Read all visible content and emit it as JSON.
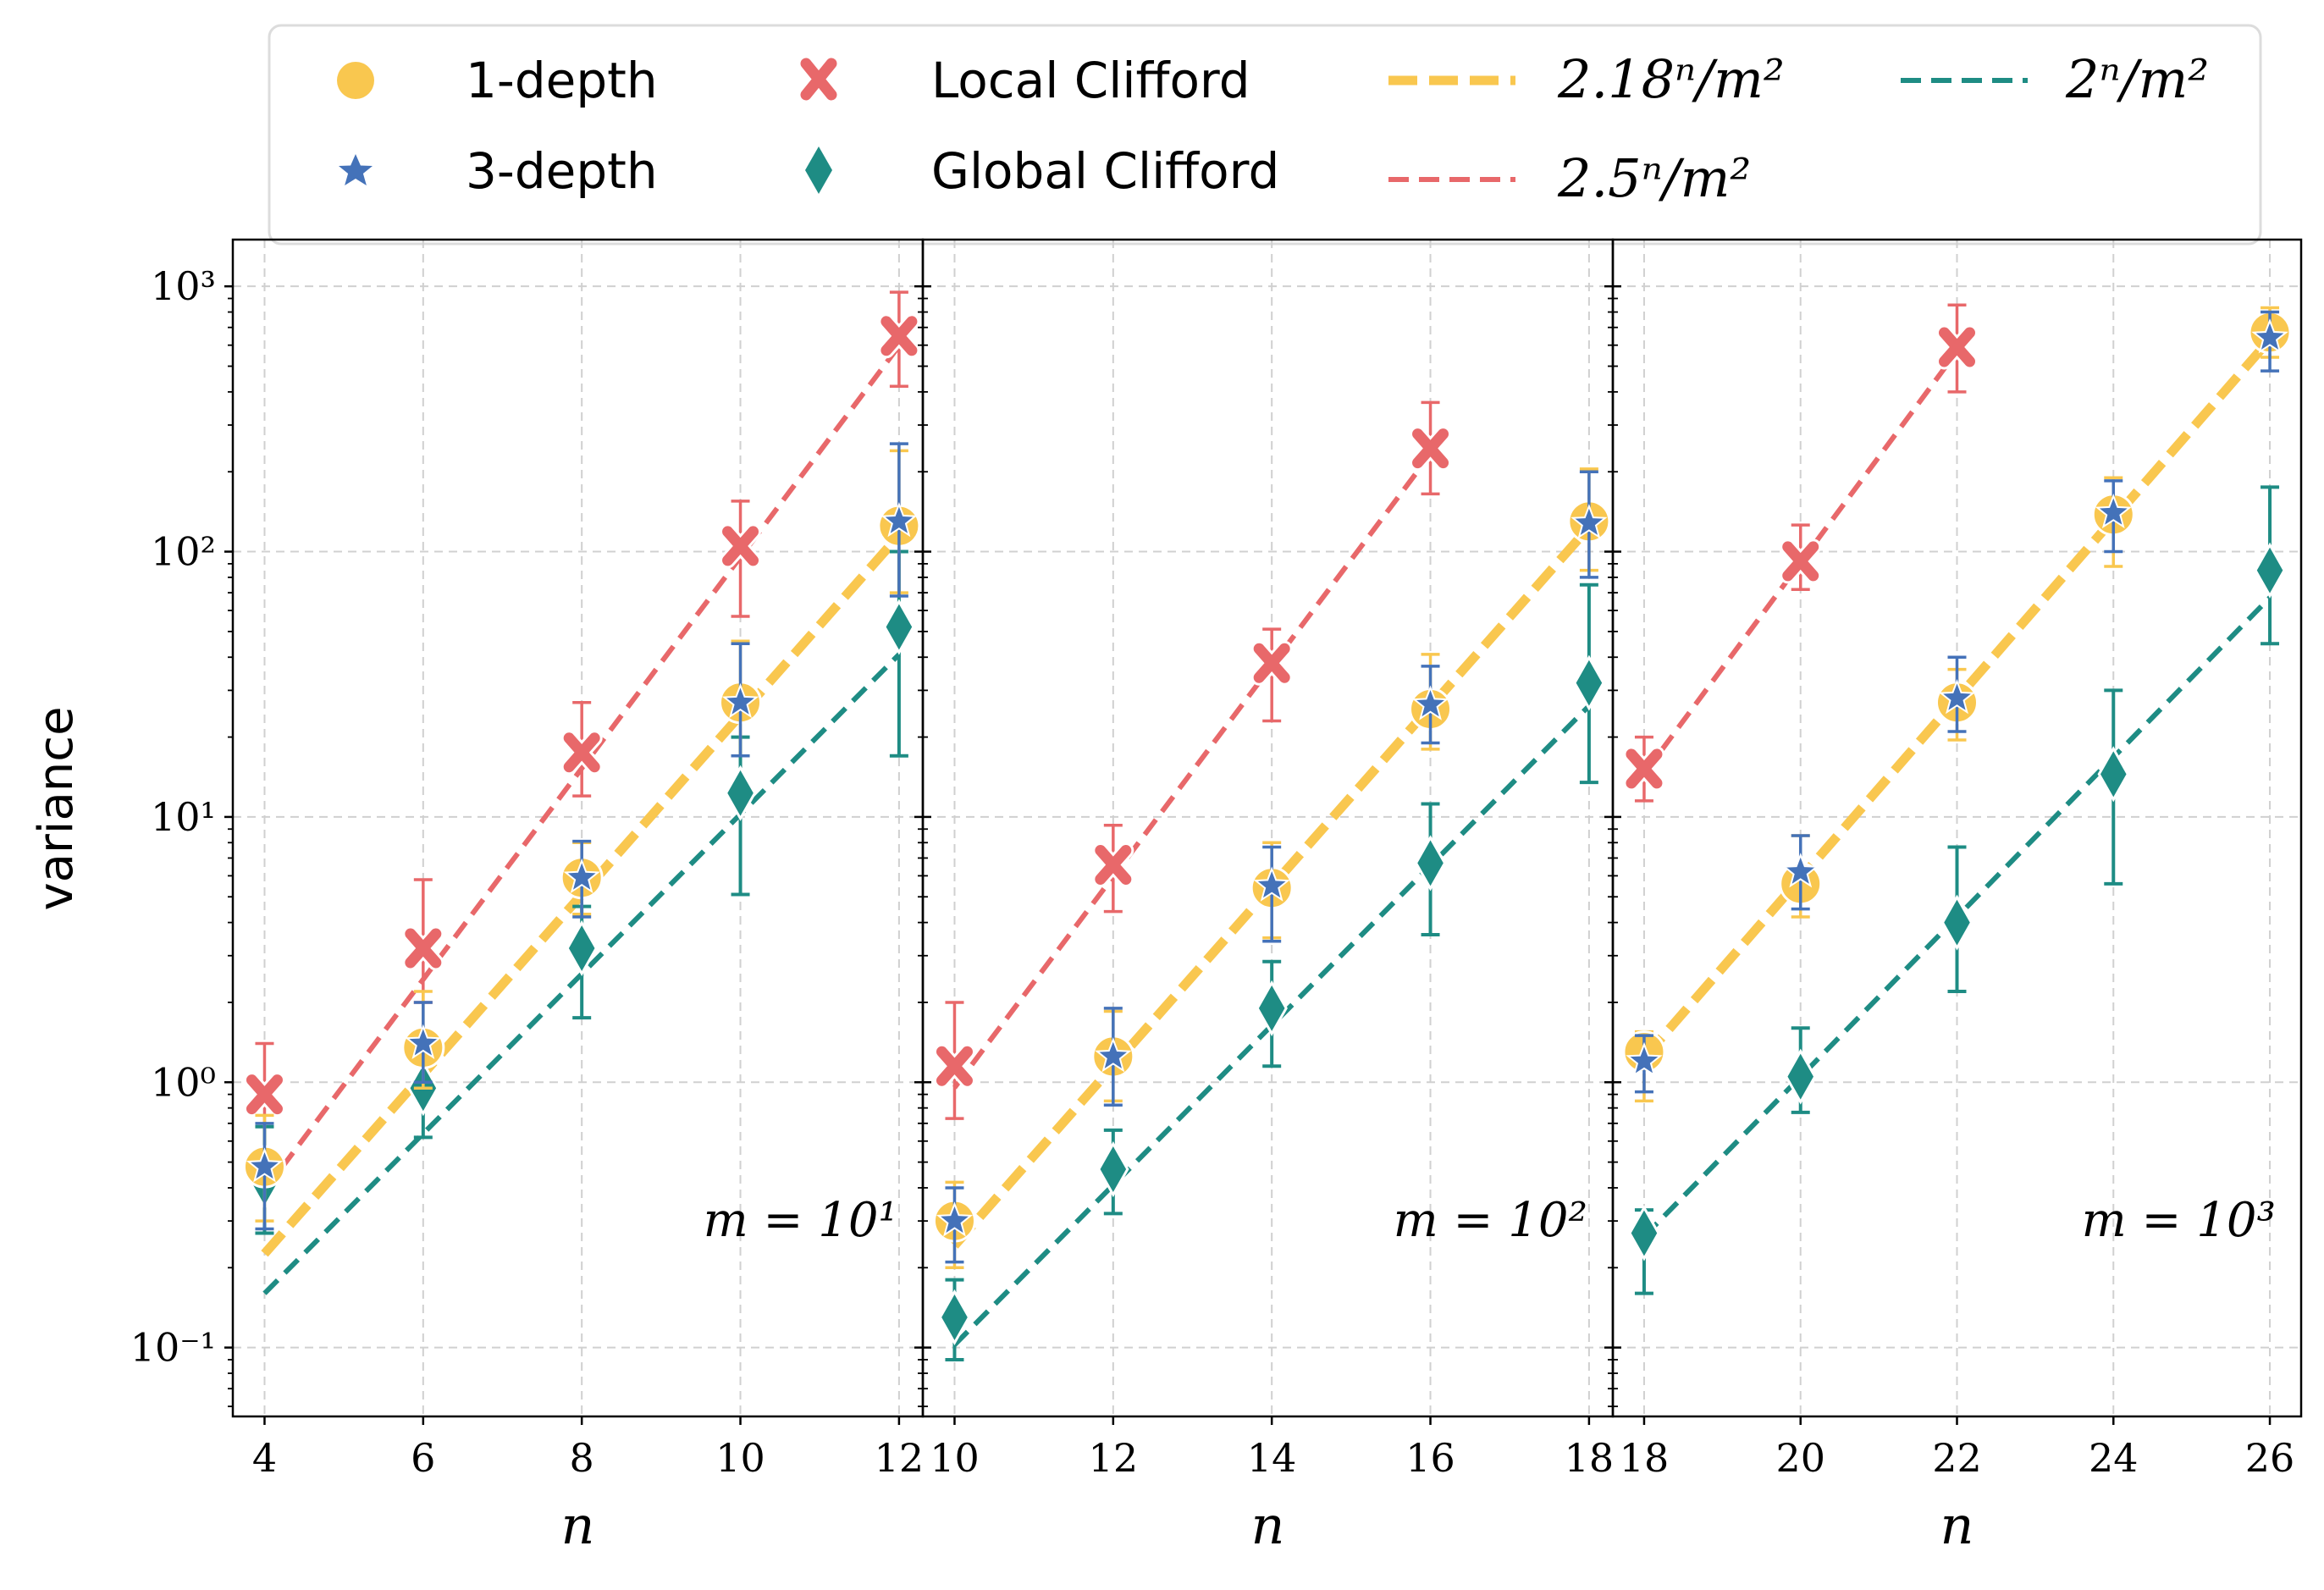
{
  "colors": {
    "one_depth": "#F9C74F",
    "three_depth": "#4472B9",
    "local_clifford": "#E8686A",
    "global_clifford": "#1E8C84",
    "grid": "#d0d0d0"
  },
  "legend": {
    "items": [
      {
        "label": "1-depth",
        "marker": "circle",
        "color": "#F9C74F"
      },
      {
        "label": "3-depth",
        "marker": "star",
        "color": "#4472B9"
      },
      {
        "label": "Local Clifford",
        "marker": "x",
        "color": "#E8686A"
      },
      {
        "label": "Global Clifford",
        "marker": "diamond",
        "color": "#1E8C84"
      },
      {
        "label": "2.18ⁿ/m²",
        "marker": "thick-dash",
        "color": "#F9C74F"
      },
      {
        "label": "2.5ⁿ/m²",
        "marker": "dash",
        "color": "#E8686A"
      },
      {
        "label": "2ⁿ/m²",
        "marker": "dash",
        "color": "#1E8C84"
      }
    ]
  },
  "chart_data": [
    {
      "type": "scatter",
      "annotation": "m = 10¹",
      "xlabel": "n",
      "ylabel": "variance",
      "yscale": "log",
      "ylim": [
        0.055,
        1500
      ],
      "xlim": [
        3.6,
        12.3
      ],
      "x_ticks": [
        "4",
        "6",
        "8",
        "10",
        "12"
      ],
      "y_ticks": [
        "10⁻¹",
        "10⁰",
        "10¹",
        "10²",
        "10³"
      ],
      "x": [
        4,
        6,
        8,
        10,
        12
      ],
      "m": 10,
      "series": [
        {
          "name": "Local Clifford",
          "values": [
            0.9,
            3.2,
            17.5,
            105,
            650
          ],
          "err_low": [
            0.55,
            2.0,
            12,
            57,
            420
          ],
          "err_high": [
            1.4,
            5.8,
            27,
            155,
            950
          ]
        },
        {
          "name": "1-depth",
          "values": [
            0.48,
            1.35,
            5.9,
            27,
            125
          ],
          "err_low": [
            0.3,
            0.95,
            4.3,
            17,
            70
          ],
          "err_high": [
            0.75,
            2.2,
            8.0,
            46,
            240
          ]
        },
        {
          "name": "3-depth",
          "values": [
            0.48,
            1.4,
            5.9,
            27,
            130
          ],
          "err_low": [
            0.28,
            1.0,
            4.2,
            17,
            68
          ],
          "err_high": [
            0.7,
            2.0,
            8.1,
            45,
            255
          ]
        },
        {
          "name": "Global Clifford",
          "values": [
            0.42,
            0.95,
            3.2,
            12.3,
            52
          ],
          "err_low": [
            0.27,
            0.62,
            1.75,
            5.1,
            17
          ],
          "err_high": [
            0.68,
            1.5,
            4.6,
            20,
            100
          ]
        }
      ]
    },
    {
      "type": "scatter",
      "annotation": "m = 10²",
      "xlabel": "n",
      "ylabel": "",
      "yscale": "log",
      "ylim": [
        0.055,
        1500
      ],
      "xlim": [
        9.6,
        18.3
      ],
      "x_ticks": [
        "10",
        "12",
        "14",
        "16",
        "18"
      ],
      "x": [
        10,
        12,
        14,
        16,
        18
      ],
      "m": 100,
      "series": [
        {
          "name": "Local Clifford",
          "values": [
            1.15,
            6.6,
            38,
            245
          ],
          "err_low": [
            0.73,
            4.4,
            23,
            165
          ],
          "err_high": [
            2.0,
            9.3,
            51,
            365
          ]
        },
        {
          "name": "1-depth",
          "values": [
            0.3,
            1.25,
            5.4,
            25.5,
            130
          ],
          "err_low": [
            0.2,
            0.85,
            3.5,
            18,
            85
          ],
          "err_high": [
            0.42,
            1.85,
            8.0,
            41,
            205
          ]
        },
        {
          "name": "3-depth",
          "values": [
            0.3,
            1.25,
            5.5,
            26.5,
            128
          ],
          "err_low": [
            0.21,
            0.82,
            3.4,
            19,
            80
          ],
          "err_high": [
            0.4,
            1.9,
            7.7,
            37,
            200
          ]
        },
        {
          "name": "Global Clifford",
          "values": [
            0.13,
            0.47,
            1.9,
            6.7,
            32
          ],
          "err_low": [
            0.09,
            0.32,
            1.15,
            3.6,
            13.5
          ],
          "err_high": [
            0.18,
            0.66,
            2.85,
            11.2,
            75
          ]
        }
      ]
    },
    {
      "type": "scatter",
      "annotation": "m = 10³",
      "xlabel": "n",
      "ylabel": "",
      "yscale": "log",
      "ylim": [
        0.055,
        1500
      ],
      "xlim": [
        17.6,
        26.4
      ],
      "x_ticks": [
        "18",
        "20",
        "22",
        "24",
        "26"
      ],
      "x": [
        18,
        20,
        22,
        24,
        26
      ],
      "m": 1000,
      "series": [
        {
          "name": "Local Clifford",
          "values": [
            15.2,
            92,
            590
          ],
          "err_low": [
            11.5,
            72,
            400
          ],
          "err_high": [
            20,
            126,
            850
          ]
        },
        {
          "name": "1-depth",
          "values": [
            1.3,
            5.6,
            27,
            138,
            670
          ],
          "err_low": [
            0.85,
            4.2,
            19.5,
            88,
            540
          ],
          "err_high": [
            1.55,
            8.5,
            36,
            190,
            830
          ]
        },
        {
          "name": "3-depth",
          "values": [
            1.2,
            6.2,
            28,
            140,
            640
          ],
          "err_low": [
            0.92,
            4.5,
            21,
            100,
            480
          ],
          "err_high": [
            1.5,
            8.5,
            40,
            185,
            800
          ]
        },
        {
          "name": "Global Clifford",
          "values": [
            0.27,
            1.05,
            4.0,
            14.5,
            85
          ],
          "err_low": [
            0.16,
            0.77,
            2.2,
            5.6,
            45
          ],
          "err_high": [
            0.33,
            1.6,
            7.7,
            30,
            175
          ]
        }
      ]
    }
  ]
}
